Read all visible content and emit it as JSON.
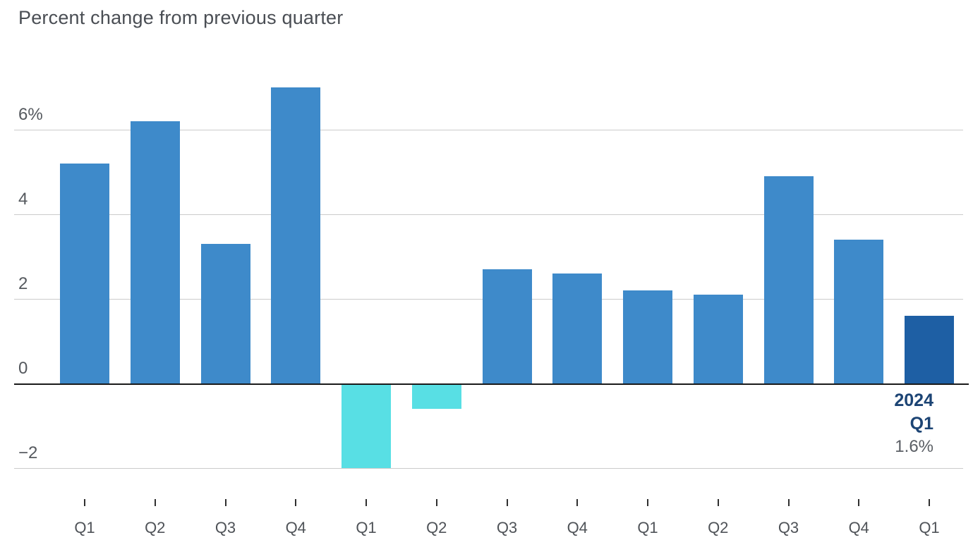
{
  "chart_data": {
    "type": "bar",
    "title": "Percent change from previous quarter",
    "x": [
      "Q1",
      "Q2",
      "Q3",
      "Q4",
      "Q1",
      "Q2",
      "Q3",
      "Q4",
      "Q1",
      "Q2",
      "Q3",
      "Q4",
      "Q1"
    ],
    "values": [
      5.2,
      6.2,
      3.3,
      7.0,
      -2.0,
      -0.6,
      2.7,
      2.6,
      2.2,
      2.1,
      4.9,
      3.4,
      1.6
    ],
    "ylim": [
      -2.3,
      7.2
    ],
    "grid": true,
    "legend": "none",
    "gridline_values": [
      6,
      4,
      2,
      -2
    ],
    "y_ticks": [
      {
        "value": 6,
        "label": "6%"
      },
      {
        "value": 4,
        "label": "4"
      },
      {
        "value": 2,
        "label": "2"
      },
      {
        "value": 0,
        "label": "0"
      },
      {
        "value": -2,
        "label": "−2"
      }
    ],
    "bar_colors": {
      "positive": "#3e8aca",
      "negative": "#58dfe4",
      "highlight": "#1e5fa4"
    },
    "highlight_index": 12,
    "annotation": {
      "year": "2024",
      "quarter": "Q1",
      "value": "1.6%"
    }
  }
}
